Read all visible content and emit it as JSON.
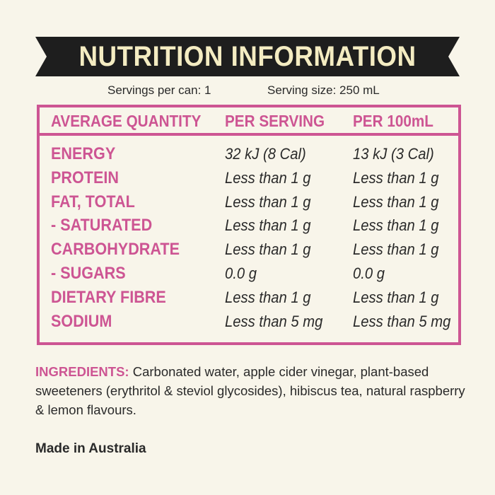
{
  "title": "NUTRITION INFORMATION",
  "servings_per_can": "Servings per can: 1",
  "serving_size": "Serving size: 250 mL",
  "columns": [
    "AVERAGE QUANTITY",
    "PER SERVING",
    "PER 100mL"
  ],
  "rows": [
    {
      "label": "ENERGY",
      "per_serving": "32 kJ (8 Cal)",
      "per_100ml": "13 kJ (3 Cal)"
    },
    {
      "label": "PROTEIN",
      "per_serving": "Less than 1 g",
      "per_100ml": "Less than 1 g"
    },
    {
      "label": "FAT, TOTAL",
      "per_serving": "Less than 1 g",
      "per_100ml": "Less than 1 g"
    },
    {
      "label": "- SATURATED",
      "per_serving": "Less than 1 g",
      "per_100ml": "Less than 1 g"
    },
    {
      "label": "CARBOHYDRATE",
      "per_serving": "Less than 1 g",
      "per_100ml": "Less than 1 g"
    },
    {
      "label": "- SUGARS",
      "per_serving": "0.0 g",
      "per_100ml": "0.0 g"
    },
    {
      "label": "DIETARY FIBRE",
      "per_serving": "Less than 1 g",
      "per_100ml": "Less than 1 g"
    },
    {
      "label": "SODIUM",
      "per_serving": "Less than 5 mg",
      "per_100ml": "Less than 5 mg"
    }
  ],
  "ingredients_label": "INGREDIENTS:",
  "ingredients_text": "Carbonated water, apple cider vinegar, plant-based sweeteners (erythritol & steviol glycosides), hibiscus tea, natural raspberry & lemon flavours.",
  "made_in": "Made in Australia",
  "colors": {
    "accent": "#cd5593",
    "banner": "#1e1e1e",
    "banner_text": "#f4ecc2",
    "background": "#f8f5ea"
  }
}
